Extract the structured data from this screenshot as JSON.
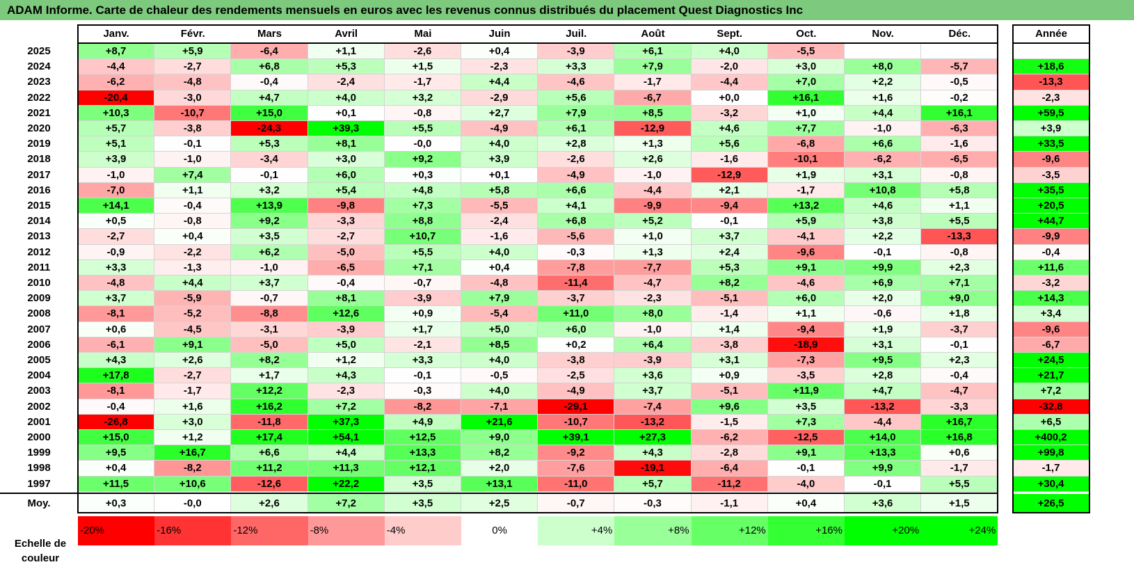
{
  "title": "ADAM Informe. Carte de chaleur des rendements mensuels en euros avec les revenus connus distribués du placement Quest Diagnostics Inc",
  "chart_data": {
    "type": "heatmap",
    "title": "ADAM Informe. Carte de chaleur des rendements mensuels en euros avec les revenus connus distribués du placement Quest Diagnostics Inc",
    "columns": [
      "Janv.",
      "Févr.",
      "Mars",
      "Avril",
      "Mai",
      "Juin",
      "Juil.",
      "Août",
      "Sept.",
      "Oct.",
      "Nov.",
      "Déc."
    ],
    "year_header": "Année",
    "avg_label": "Moy.",
    "rows": [
      {
        "year": "2025",
        "values": [
          "+8,7",
          "+5,9",
          "-6,4",
          "+1,1",
          "-2,6",
          "+0,4",
          "-3,9",
          "+6,1",
          "+4,0",
          "-5,5",
          "",
          ""
        ],
        "annual": ""
      },
      {
        "year": "2024",
        "values": [
          "-4,4",
          "-2,7",
          "+6,8",
          "+5,3",
          "+1,5",
          "-2,3",
          "+3,3",
          "+7,9",
          "-2,0",
          "+3,0",
          "+8,0",
          "-5,7"
        ],
        "annual": "+18,6"
      },
      {
        "year": "2023",
        "values": [
          "-6,2",
          "-4,8",
          "-0,4",
          "-2,4",
          "-1,7",
          "+4,4",
          "-4,6",
          "-1,7",
          "-4,4",
          "+7,0",
          "+2,2",
          "-0,5"
        ],
        "annual": "-13,3"
      },
      {
        "year": "2022",
        "values": [
          "-20,4",
          "-3,0",
          "+4,7",
          "+4,0",
          "+3,2",
          "-2,9",
          "+5,6",
          "-6,7",
          "+0,0",
          "+16,1",
          "+1,6",
          "-0,2"
        ],
        "annual": "-2,3"
      },
      {
        "year": "2021",
        "values": [
          "+10,3",
          "-10,7",
          "+15,0",
          "+0,1",
          "-0,8",
          "+2,7",
          "+7,9",
          "+8,5",
          "-3,2",
          "+1,0",
          "+4,4",
          "+16,1"
        ],
        "annual": "+59,5"
      },
      {
        "year": "2020",
        "values": [
          "+5,7",
          "-3,8",
          "-24,3",
          "+39,3",
          "+5,5",
          "-4,9",
          "+6,1",
          "-12,9",
          "+4,6",
          "+7,7",
          "-1,0",
          "-6,3"
        ],
        "annual": "+3,9"
      },
      {
        "year": "2019",
        "values": [
          "+5,1",
          "-0,1",
          "+5,3",
          "+8,1",
          "-0,0",
          "+4,0",
          "+2,8",
          "+1,3",
          "+5,6",
          "-6,8",
          "+6,6",
          "-1,6"
        ],
        "annual": "+33,5"
      },
      {
        "year": "2018",
        "values": [
          "+3,9",
          "-1,0",
          "-3,4",
          "+3,0",
          "+9,2",
          "+3,9",
          "-2,6",
          "+2,6",
          "-1,6",
          "-10,1",
          "-6,2",
          "-6,5"
        ],
        "annual": "-9,6"
      },
      {
        "year": "2017",
        "values": [
          "-1,0",
          "+7,4",
          "-0,1",
          "+6,0",
          "+0,3",
          "+0,1",
          "-4,9",
          "-1,0",
          "-12,9",
          "+1,9",
          "+3,1",
          "-0,8"
        ],
        "annual": "-3,5"
      },
      {
        "year": "2016",
        "values": [
          "-7,0",
          "+1,1",
          "+3,2",
          "+5,4",
          "+4,8",
          "+5,8",
          "+6,6",
          "-4,4",
          "+2,1",
          "-1,7",
          "+10,8",
          "+5,8"
        ],
        "annual": "+35,5"
      },
      {
        "year": "2015",
        "values": [
          "+14,1",
          "-0,4",
          "+13,9",
          "-9,8",
          "+7,3",
          "-5,5",
          "+4,1",
          "-9,9",
          "-9,4",
          "+13,2",
          "+4,6",
          "+1,1"
        ],
        "annual": "+20,5"
      },
      {
        "year": "2014",
        "values": [
          "+0,5",
          "-0,8",
          "+9,2",
          "-3,3",
          "+8,8",
          "-2,4",
          "+6,8",
          "+5,2",
          "-0,1",
          "+5,9",
          "+3,8",
          "+5,5"
        ],
        "annual": "+44,7"
      },
      {
        "year": "2013",
        "values": [
          "-2,7",
          "+0,4",
          "+3,5",
          "-2,7",
          "+10,7",
          "-1,6",
          "-5,6",
          "+1,0",
          "+3,7",
          "-4,1",
          "+2,2",
          "-13,3"
        ],
        "annual": "-9,9"
      },
      {
        "year": "2012",
        "values": [
          "-0,9",
          "-2,2",
          "+6,2",
          "-5,0",
          "+5,5",
          "+4,0",
          "-0,3",
          "+1,3",
          "+2,4",
          "-9,6",
          "-0,1",
          "-0,8"
        ],
        "annual": "-0,4"
      },
      {
        "year": "2011",
        "values": [
          "+3,3",
          "-1,3",
          "-1,0",
          "-6,5",
          "+7,1",
          "+0,4",
          "-7,8",
          "-7,7",
          "+5,3",
          "+9,1",
          "+9,9",
          "+2,3"
        ],
        "annual": "+11,6"
      },
      {
        "year": "2010",
        "values": [
          "-4,8",
          "+4,4",
          "+3,7",
          "-0,4",
          "-0,7",
          "-4,8",
          "-11,4",
          "-4,7",
          "+8,2",
          "-4,6",
          "+6,9",
          "+7,1"
        ],
        "annual": "-3,2"
      },
      {
        "year": "2009",
        "values": [
          "+3,7",
          "-5,9",
          "-0,7",
          "+8,1",
          "-3,9",
          "+7,9",
          "-3,7",
          "-2,3",
          "-5,1",
          "+6,0",
          "+2,0",
          "+9,0"
        ],
        "annual": "+14,3"
      },
      {
        "year": "2008",
        "values": [
          "-8,1",
          "-5,2",
          "-8,8",
          "+12,6",
          "+0,9",
          "-5,4",
          "+11,0",
          "+8,0",
          "-1,4",
          "+1,1",
          "-0,6",
          "+1,8"
        ],
        "annual": "+3,4"
      },
      {
        "year": "2007",
        "values": [
          "+0,6",
          "-4,5",
          "-3,1",
          "-3,9",
          "+1,7",
          "+5,0",
          "+6,0",
          "-1,0",
          "+1,4",
          "-9,4",
          "+1,9",
          "-3,7"
        ],
        "annual": "-9,6"
      },
      {
        "year": "2006",
        "values": [
          "-6,1",
          "+9,1",
          "-5,0",
          "+5,0",
          "-2,1",
          "+8,5",
          "+0,2",
          "+6,4",
          "-3,8",
          "-18,9",
          "+3,1",
          "-0,1"
        ],
        "annual": "-6,7"
      },
      {
        "year": "2005",
        "values": [
          "+4,3",
          "+2,6",
          "+8,2",
          "+1,2",
          "+3,3",
          "+4,0",
          "-3,8",
          "-3,9",
          "+3,1",
          "-7,3",
          "+9,5",
          "+2,3"
        ],
        "annual": "+24,5"
      },
      {
        "year": "2004",
        "values": [
          "+17,8",
          "-2,7",
          "+1,7",
          "+4,3",
          "-0,1",
          "-0,5",
          "-2,5",
          "+3,6",
          "+0,9",
          "-3,5",
          "+2,8",
          "-0,4"
        ],
        "annual": "+21,7"
      },
      {
        "year": "2003",
        "values": [
          "-8,1",
          "-1,7",
          "+12,2",
          "-2,3",
          "-0,3",
          "+4,0",
          "-4,9",
          "+3,7",
          "-5,1",
          "+11,9",
          "+4,7",
          "-4,7"
        ],
        "annual": "+7,2"
      },
      {
        "year": "2002",
        "values": [
          "-0,4",
          "+1,6",
          "+16,2",
          "+7,2",
          "-8,2",
          "-7,1",
          "-29,1",
          "-7,4",
          "+9,6",
          "+3,5",
          "-13,2",
          "-3,3"
        ],
        "annual": "-32,8"
      },
      {
        "year": "2001",
        "values": [
          "-26,8",
          "+3,0",
          "-11,8",
          "+37,3",
          "+4,9",
          "+21,6",
          "-10,7",
          "-13,2",
          "-1,5",
          "+7,3",
          "-4,4",
          "+16,7"
        ],
        "annual": "+6,5"
      },
      {
        "year": "2000",
        "values": [
          "+15,0",
          "+1,2",
          "+17,4",
          "+54,1",
          "+12,5",
          "+9,0",
          "+39,1",
          "+27,3",
          "-6,2",
          "-12,5",
          "+14,0",
          "+16,8"
        ],
        "annual": "+400,2"
      },
      {
        "year": "1999",
        "values": [
          "+9,5",
          "+16,7",
          "+6,6",
          "+4,4",
          "+13,3",
          "+8,2",
          "-9,2",
          "+4,3",
          "-2,8",
          "+9,1",
          "+13,3",
          "+0,6"
        ],
        "annual": "+99,8"
      },
      {
        "year": "1998",
        "values": [
          "+0,4",
          "-8,2",
          "+11,2",
          "+11,3",
          "+12,1",
          "+2,0",
          "-7,6",
          "-19,1",
          "-6,4",
          "-0,1",
          "+9,9",
          "-1,7"
        ],
        "annual": "-1,7"
      },
      {
        "year": "1997",
        "values": [
          "+11,5",
          "+10,6",
          "-12,6",
          "+22,2",
          "+3,5",
          "+13,1",
          "-11,0",
          "+5,7",
          "-11,2",
          "-4,0",
          "-0,1",
          "+5,5"
        ],
        "annual": "+30,4"
      }
    ],
    "averages": [
      "+0,3",
      "-0,0",
      "+2,6",
      "+7,2",
      "+3,5",
      "+2,5",
      "-0,7",
      "-0,3",
      "-1,1",
      "+0,4",
      "+3,6",
      "+1,5"
    ],
    "avg_annual": "+26,5",
    "scale_label": "Echelle de couleur",
    "scale_steps": [
      "-20%",
      "-16%",
      "-12%",
      "-8%",
      "-4%",
      "0%",
      "+4%",
      "+8%",
      "+12%",
      "+16%",
      "+20%",
      "+24%"
    ],
    "scale_values": [
      -20,
      -16,
      -12,
      -8,
      -4,
      0,
      4,
      8,
      12,
      16,
      20,
      24
    ],
    "colors": {
      "negative_max": "#ff0000",
      "neutral": "#ffffff",
      "positive_max": "#00ff00",
      "title_bg": "#7dc97d"
    }
  }
}
